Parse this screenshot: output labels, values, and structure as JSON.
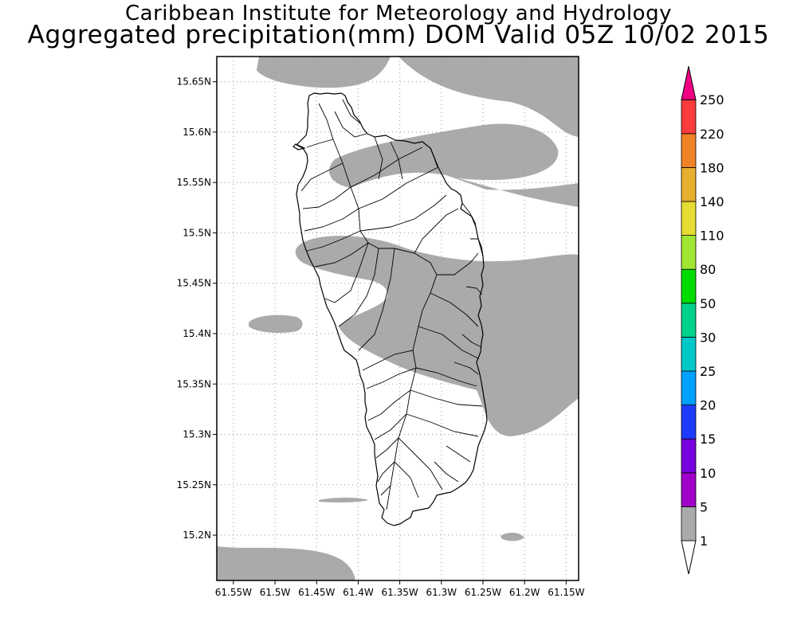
{
  "header": {
    "institute": "Caribbean Institute for Meteorology and Hydrology",
    "product": "Aggregated precipitation(mm) DOM Valid 05Z 10/02 2015"
  },
  "map": {
    "lon_range": [
      -61.57,
      -61.135
    ],
    "lat_range": [
      15.155,
      15.675
    ],
    "lon_ticks": [
      {
        "value": -61.55,
        "label": "61.55W"
      },
      {
        "value": -61.5,
        "label": "61.5W"
      },
      {
        "value": -61.45,
        "label": "61.45W"
      },
      {
        "value": -61.4,
        "label": "61.4W"
      },
      {
        "value": -61.35,
        "label": "61.35W"
      },
      {
        "value": -61.3,
        "label": "61.3W"
      },
      {
        "value": -61.25,
        "label": "61.25W"
      },
      {
        "value": -61.2,
        "label": "61.2W"
      },
      {
        "value": -61.15,
        "label": "61.15W"
      }
    ],
    "lat_ticks": [
      {
        "value": 15.2,
        "label": "15.2N"
      },
      {
        "value": 15.25,
        "label": "15.25N"
      },
      {
        "value": 15.3,
        "label": "15.3N"
      },
      {
        "value": 15.35,
        "label": "15.35N"
      },
      {
        "value": 15.4,
        "label": "15.4N"
      },
      {
        "value": 15.45,
        "label": "15.45N"
      },
      {
        "value": 15.5,
        "label": "15.5N"
      },
      {
        "value": 15.55,
        "label": "15.55N"
      },
      {
        "value": 15.6,
        "label": "15.6N"
      },
      {
        "value": 15.65,
        "label": "15.65N"
      }
    ],
    "gridlines": true,
    "precip_shade_color": "#aaaaaa",
    "coast_color": "#000000"
  },
  "colorbar": {
    "levels": [
      {
        "label": "1",
        "color": "#aaaaaa"
      },
      {
        "label": "5",
        "color": "#a000c8"
      },
      {
        "label": "10",
        "color": "#7800dc"
      },
      {
        "label": "15",
        "color": "#1e3cff"
      },
      {
        "label": "20",
        "color": "#00a0ff"
      },
      {
        "label": "25",
        "color": "#00c8c8"
      },
      {
        "label": "30",
        "color": "#00d28c"
      },
      {
        "label": "50",
        "color": "#00dc00"
      },
      {
        "label": "80",
        "color": "#a0e632"
      },
      {
        "label": "110",
        "color": "#e6dc32"
      },
      {
        "label": "140",
        "color": "#e6af2d"
      },
      {
        "label": "180",
        "color": "#f08228"
      },
      {
        "label": "220",
        "color": "#fa3c3c"
      },
      {
        "label": "250",
        "color": "#f00082"
      }
    ],
    "under_color": "#ffffff",
    "over_color": "#f00082"
  }
}
